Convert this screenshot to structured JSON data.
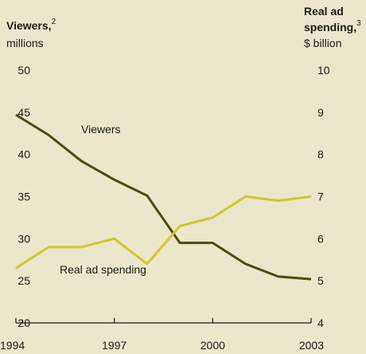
{
  "chart_data": {
    "type": "line",
    "left_axis": {
      "title": "Viewers,",
      "title_sup": "2",
      "unit": "millions",
      "ylim": [
        20,
        50
      ],
      "ticks": [
        20,
        25,
        30,
        35,
        40,
        45,
        50
      ]
    },
    "right_axis": {
      "title_line1": "Real ad",
      "title_line2": "spending,",
      "title_sup": "3",
      "unit": "$ billion",
      "ylim": [
        4,
        10
      ],
      "ticks": [
        4,
        5,
        6,
        7,
        8,
        9,
        10
      ]
    },
    "x_ticks": [
      "1994",
      "1997",
      "2000",
      "2003"
    ],
    "x": [
      1994,
      1995,
      1996,
      1997,
      1998,
      1999,
      2000,
      2001,
      2002,
      2003
    ],
    "series": [
      {
        "name": "Viewers",
        "axis": "left",
        "color": "#4d4a13",
        "values": [
          44.7,
          42.3,
          39.2,
          37.0,
          35.1,
          29.5,
          29.5,
          27.0,
          25.5,
          25.2
        ]
      },
      {
        "name": "Real ad spending",
        "axis": "right",
        "color": "#d1c829",
        "values": [
          5.3,
          5.8,
          5.8,
          6.0,
          5.4,
          6.3,
          6.5,
          7.0,
          6.9,
          7.0
        ]
      }
    ]
  }
}
